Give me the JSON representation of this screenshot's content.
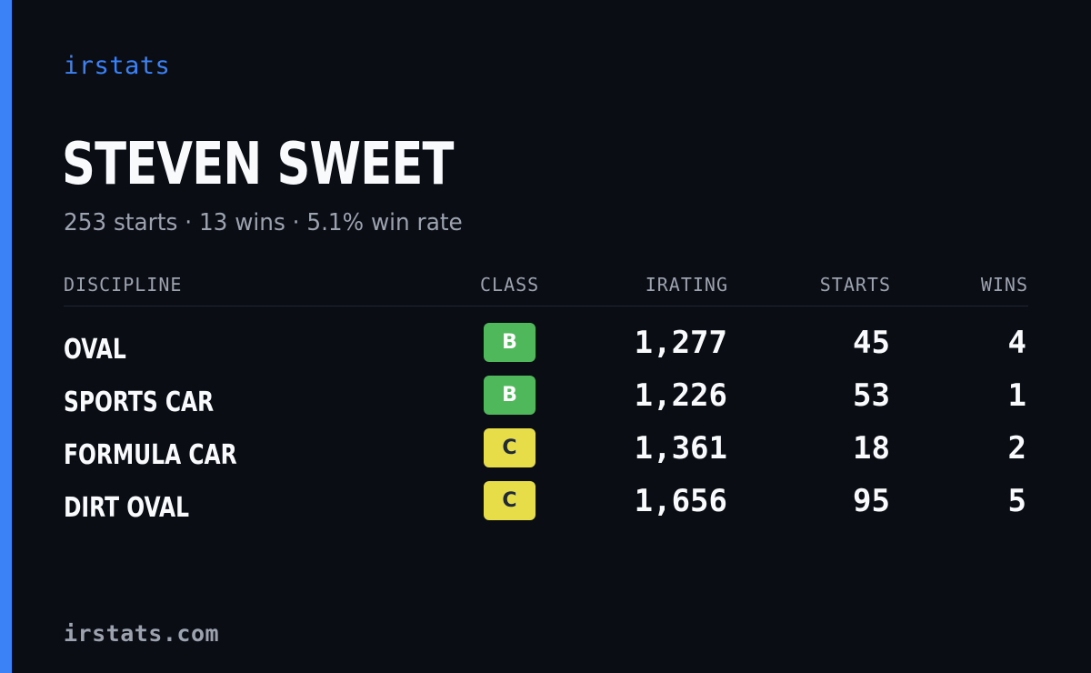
{
  "brand": "irstats",
  "driver": {
    "name": "STEVEN SWEET",
    "summary": "253 starts · 13 wins · 5.1% win rate"
  },
  "table": {
    "headers": {
      "discipline": "DISCIPLINE",
      "class": "CLASS",
      "irating": "IRATING",
      "starts": "STARTS",
      "wins": "WINS"
    },
    "rows": [
      {
        "discipline": "OVAL",
        "class": "B",
        "irating": "1,277",
        "starts": "45",
        "wins": "4"
      },
      {
        "discipline": "SPORTS CAR",
        "class": "B",
        "irating": "1,226",
        "starts": "53",
        "wins": "1"
      },
      {
        "discipline": "FORMULA CAR",
        "class": "C",
        "irating": "1,361",
        "starts": "18",
        "wins": "2"
      },
      {
        "discipline": "DIRT OVAL",
        "class": "C",
        "irating": "1,656",
        "starts": "95",
        "wins": "5"
      }
    ]
  },
  "footer": "irstats.com",
  "colors": {
    "background": "#0a0d14",
    "accent": "#3b82f6",
    "class_B": "#4fb85a",
    "class_C": "#e7dd48"
  }
}
